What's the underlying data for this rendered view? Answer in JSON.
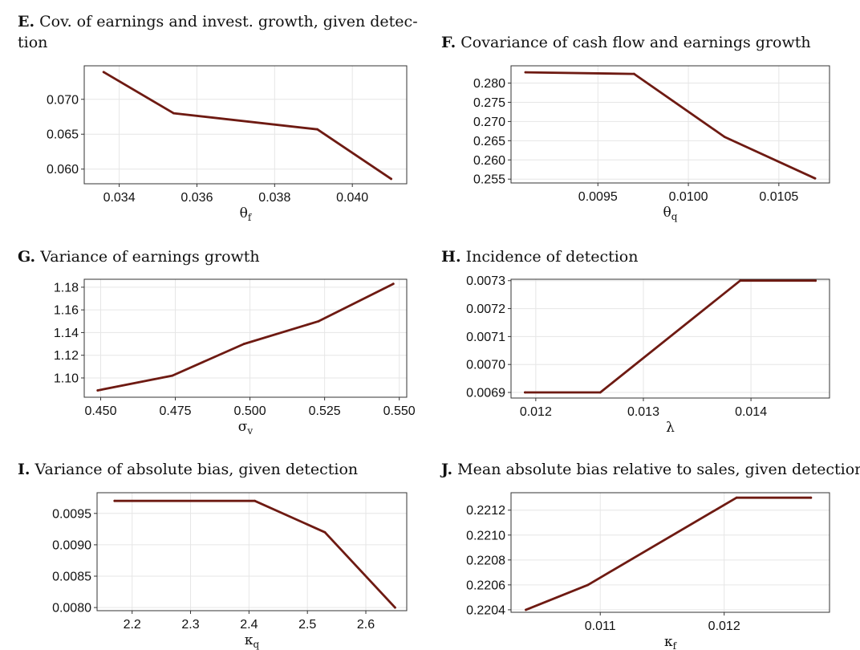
{
  "chart_data": [
    {
      "id": "E",
      "type": "line",
      "letter": "E.",
      "title_lines": [
        "Cov. of earnings and invest. growth, given detec-",
        "tion"
      ],
      "xlabel": "θ",
      "xlabel_sub": "f",
      "x": [
        0.0336,
        0.0354,
        0.0391,
        0.041
      ],
      "values": [
        0.0739,
        0.068,
        0.0657,
        0.0586
      ],
      "xlim": [
        0.0331,
        0.0414
      ],
      "ylim": [
        0.0579,
        0.0748
      ],
      "xticks": [
        0.034,
        0.036,
        0.038,
        0.04
      ],
      "xtick_labels": [
        "0.034",
        "0.036",
        "0.038",
        "0.040"
      ],
      "yticks": [
        0.06,
        0.065,
        0.07
      ],
      "ytick_labels": [
        "0.060",
        "0.065",
        "0.070"
      ],
      "grid": true
    },
    {
      "id": "F",
      "type": "line",
      "letter": "F.",
      "title_lines": [
        "Covariance of cash flow and earnings growth"
      ],
      "xlabel": "θ",
      "xlabel_sub": "q",
      "x": [
        0.0091,
        0.0097,
        0.0102,
        0.0107
      ],
      "values": [
        0.2828,
        0.2824,
        0.266,
        0.2552
      ],
      "xlim": [
        0.00902,
        0.01078
      ],
      "ylim": [
        0.254,
        0.2845
      ],
      "xticks": [
        0.0095,
        0.01,
        0.0105
      ],
      "xtick_labels": [
        "0.0095",
        "0.0100",
        "0.0105"
      ],
      "yticks": [
        0.255,
        0.26,
        0.265,
        0.27,
        0.275,
        0.28
      ],
      "ytick_labels": [
        "0.255",
        "0.260",
        "0.265",
        "0.270",
        "0.275",
        "0.280"
      ],
      "grid": true
    },
    {
      "id": "G",
      "type": "line",
      "letter": "G.",
      "title_lines": [
        "Variance of earnings growth"
      ],
      "xlabel": "σ",
      "xlabel_sub": "v",
      "x": [
        0.449,
        0.474,
        0.498,
        0.523,
        0.548
      ],
      "values": [
        1.089,
        1.102,
        1.13,
        1.15,
        1.183
      ],
      "xlim": [
        0.4445,
        0.5525
      ],
      "ylim": [
        1.083,
        1.187
      ],
      "xticks": [
        0.45,
        0.475,
        0.5,
        0.525,
        0.55
      ],
      "xtick_labels": [
        "0.450",
        "0.475",
        "0.500",
        "0.525",
        "0.550"
      ],
      "yticks": [
        1.1,
        1.12,
        1.14,
        1.16,
        1.18
      ],
      "ytick_labels": [
        "1.10",
        "1.12",
        "1.14",
        "1.16",
        "1.18"
      ],
      "grid": true
    },
    {
      "id": "H",
      "type": "line",
      "letter": "H.",
      "title_lines": [
        "Incidence of detection"
      ],
      "xlabel": "λ",
      "xlabel_sub": "",
      "x": [
        0.0119,
        0.0126,
        0.0139,
        0.0146
      ],
      "values": [
        0.0069,
        0.0069,
        0.0073,
        0.0073
      ],
      "xlim": [
        0.01177,
        0.01473
      ],
      "ylim": [
        0.00688,
        0.007305
      ],
      "xticks": [
        0.012,
        0.013,
        0.014
      ],
      "xtick_labels": [
        "0.012",
        "0.013",
        "0.014"
      ],
      "yticks": [
        0.0069,
        0.007,
        0.0071,
        0.0072,
        0.0073
      ],
      "ytick_labels": [
        "0.0069",
        "0.0070",
        "0.0071",
        "0.0072",
        "0.0073"
      ],
      "grid": true
    },
    {
      "id": "I",
      "type": "line",
      "letter": "I.",
      "title_lines": [
        "Variance of absolute bias, given detection"
      ],
      "xlabel": "κ",
      "xlabel_sub": "q",
      "x": [
        2.17,
        2.41,
        2.53,
        2.65
      ],
      "values": [
        0.0097,
        0.0097,
        0.0092,
        0.008
      ],
      "xlim": [
        2.14,
        2.67
      ],
      "ylim": [
        0.00795,
        0.00983
      ],
      "xticks": [
        2.2,
        2.3,
        2.4,
        2.5,
        2.6
      ],
      "xtick_labels": [
        "2.2",
        "2.3",
        "2.4",
        "2.5",
        "2.6"
      ],
      "yticks": [
        0.008,
        0.0085,
        0.009,
        0.0095
      ],
      "ytick_labels": [
        "0.0080",
        "0.0085",
        "0.0090",
        "0.0095"
      ],
      "grid": true
    },
    {
      "id": "J",
      "type": "line",
      "letter": "J.",
      "title_lines": [
        "Mean absolute bias relative to sales, given detection"
      ],
      "xlabel": "κ",
      "xlabel_sub": "f",
      "x": [
        0.0104,
        0.0109,
        0.0121,
        0.0127
      ],
      "values": [
        0.2204,
        0.2206,
        0.2213,
        0.2213
      ],
      "xlim": [
        0.01028,
        0.01285
      ],
      "ylim": [
        0.22038,
        0.22134
      ],
      "xticks": [
        0.011,
        0.012
      ],
      "xtick_labels": [
        "0.011",
        "0.012"
      ],
      "yticks": [
        0.2204,
        0.2206,
        0.2208,
        0.221,
        0.2212
      ],
      "ytick_labels": [
        "0.2204",
        "0.2206",
        "0.2208",
        "0.2210",
        "0.2212"
      ],
      "grid": true
    }
  ]
}
